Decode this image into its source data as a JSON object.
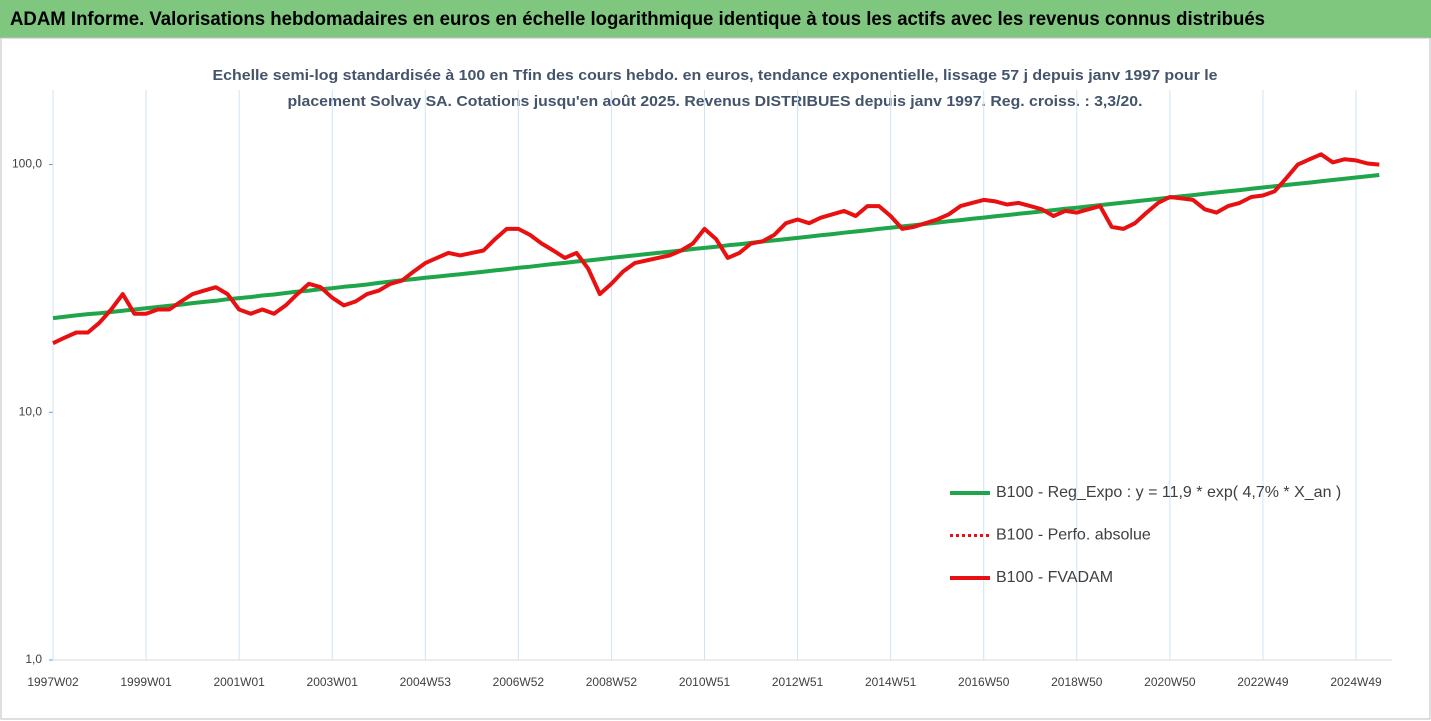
{
  "chart_data": {
    "type": "line",
    "title": "ADAM Informe. Valorisations hebdomadaires en euros en échelle logarithmique identique à tous les actifs avec les revenus connus distribués",
    "subtitle": [
      "Echelle semi-log standardisée à 100 en Tfin des cours hebdo. en euros, tendance exponentielle, lissage 57 j depuis janv 1997 pour le",
      "placement Solvay SA. Cotations jusqu'en août 2025. Revenus DISTRIBUES depuis janv 1997. Reg. croiss. : 3,3/20."
    ],
    "log_scale": true,
    "ylim": [
      1,
      200
    ],
    "yticks": [
      {
        "value": 1,
        "label": "1,0"
      },
      {
        "value": 10,
        "label": "10,0"
      },
      {
        "value": 100,
        "label": "100,0"
      }
    ],
    "legend": "bottom-right",
    "categories": [
      "1997W02",
      null,
      null,
      null,
      null,
      null,
      null,
      null,
      "1999W01",
      null,
      null,
      null,
      null,
      null,
      null,
      null,
      "2001W01",
      null,
      null,
      null,
      null,
      null,
      null,
      null,
      "2003W01",
      null,
      null,
      null,
      null,
      null,
      null,
      null,
      "2004W53",
      null,
      null,
      null,
      null,
      null,
      null,
      null,
      "2006W52",
      null,
      null,
      null,
      null,
      null,
      null,
      null,
      "2008W52",
      null,
      null,
      null,
      null,
      null,
      null,
      null,
      "2010W51",
      null,
      null,
      null,
      null,
      null,
      null,
      null,
      "2012W51",
      null,
      null,
      null,
      null,
      null,
      null,
      null,
      "2014W51",
      null,
      null,
      null,
      null,
      null,
      null,
      null,
      "2016W50",
      null,
      null,
      null,
      null,
      null,
      null,
      null,
      "2018W50",
      null,
      null,
      null,
      null,
      null,
      null,
      null,
      "2020W50",
      null,
      null,
      null,
      null,
      null,
      null,
      null,
      "2022W49",
      null,
      null,
      null,
      null,
      null,
      null,
      null,
      "2024W49",
      null,
      null
    ],
    "series": [
      {
        "name": "B100 - Reg_Expo : y = 11,9 * exp( 4,7% *  X_an )",
        "color": "#1fa64a",
        "style": "solid",
        "values": [
          24.0,
          24.3,
          24.6,
          24.9,
          25.1,
          25.4,
          25.7,
          26.0,
          26.3,
          26.6,
          26.9,
          27.2,
          27.6,
          27.9,
          28.2,
          28.6,
          28.9,
          29.2,
          29.6,
          29.9,
          30.3,
          30.7,
          31.0,
          31.4,
          31.7,
          32.1,
          32.4,
          32.8,
          33.3,
          33.7,
          34.1,
          34.5,
          34.9,
          35.3,
          35.7,
          36.1,
          36.5,
          36.9,
          37.4,
          37.8,
          38.3,
          38.7,
          39.2,
          39.7,
          40.1,
          40.6,
          41.0,
          41.5,
          42.0,
          42.5,
          43.0,
          43.5,
          44.0,
          44.5,
          45.0,
          45.6,
          46.1,
          46.6,
          47.2,
          47.7,
          48.3,
          48.9,
          49.4,
          50.0,
          50.6,
          51.2,
          51.8,
          52.4,
          53.1,
          53.7,
          54.3,
          55.0,
          55.6,
          56.3,
          56.9,
          57.6,
          58.3,
          59.0,
          59.7,
          60.4,
          61.1,
          61.8,
          62.5,
          63.3,
          64.0,
          64.7,
          65.5,
          66.3,
          67.0,
          67.8,
          68.6,
          69.4,
          70.2,
          71.0,
          71.9,
          72.7,
          73.6,
          74.5,
          75.3,
          76.2,
          77.1,
          78.0,
          78.9,
          79.8,
          80.8,
          81.7,
          82.7,
          83.7,
          84.6,
          85.6,
          86.6,
          87.6,
          88.7,
          89.7,
          90.8
        ]
      },
      {
        "name": "B100 - Perfo. absolue",
        "color": "#e81010",
        "style": "dotted"
      },
      {
        "name": "B100 - FVADAM",
        "color": "#e81010",
        "style": "solid",
        "values": [
          19,
          20,
          21,
          21,
          23,
          26,
          30,
          25,
          25,
          26,
          26,
          28,
          30,
          31,
          32,
          30,
          26,
          25,
          26,
          25,
          27,
          30,
          33,
          32,
          29,
          27,
          28,
          30,
          31,
          33,
          34,
          37,
          40,
          42,
          44,
          43,
          44,
          45,
          50,
          55,
          55,
          52,
          48,
          45,
          42,
          44,
          38,
          30,
          33,
          37,
          40,
          41,
          42,
          43,
          45,
          48,
          55,
          50,
          42,
          44,
          48,
          49,
          52,
          58,
          60,
          58,
          61,
          63,
          65,
          62,
          68,
          68,
          62,
          55,
          56,
          58,
          60,
          63,
          68,
          70,
          72,
          71,
          69,
          70,
          68,
          66,
          62,
          65,
          64,
          66,
          68,
          56,
          55,
          58,
          64,
          70,
          74,
          73,
          72,
          66,
          64,
          68,
          70,
          74,
          75,
          78,
          88,
          100,
          105,
          110,
          102,
          105,
          104,
          101,
          100
        ]
      }
    ]
  }
}
